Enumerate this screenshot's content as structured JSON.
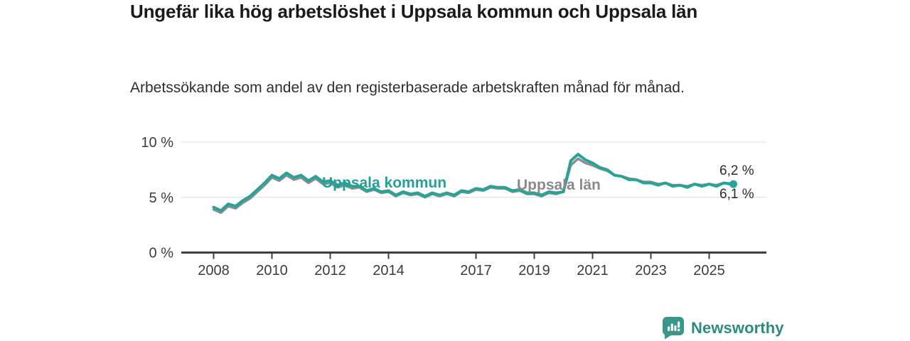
{
  "header": {
    "title": "Ungefär lika hög arbetslöshet i Uppsala kommun och Uppsala län",
    "subtitle": "Arbetssökande som andel av den registerbaserade arbetskraften månad för månad."
  },
  "chart_data": {
    "type": "line",
    "title": "Ungefär lika hög arbetslöshet i Uppsala kommun och Uppsala län",
    "subtitle": "Arbetssökande som andel av den registerbaserade arbetskraften månad för månad.",
    "xlabel": "",
    "ylabel": "",
    "ylim": [
      0,
      10
    ],
    "xlim": [
      2006.9,
      2027.0
    ],
    "grid": "horizontal",
    "legend_position": "inline-labels-on-line",
    "x_ticks": {
      "values": [
        2008,
        2010,
        2012,
        2014,
        2017,
        2019,
        2021,
        2023,
        2025
      ],
      "labels": [
        "2008",
        "2010",
        "2012",
        "2014",
        "2017",
        "2019",
        "2021",
        "2023",
        "2025"
      ]
    },
    "y_ticks": {
      "values": [
        0,
        5,
        10
      ],
      "labels": [
        "0 %",
        "5 %",
        "10 %"
      ]
    },
    "series": [
      {
        "name": "Uppsala län",
        "color": "#8d8d8d",
        "width": 3.5,
        "end_dot": false,
        "end_value_label": "6,1 %",
        "points": [
          [
            2008.0,
            3.9
          ],
          [
            2008.25,
            3.6
          ],
          [
            2008.5,
            4.2
          ],
          [
            2008.75,
            4.0
          ],
          [
            2009.0,
            4.5
          ],
          [
            2009.25,
            4.9
          ],
          [
            2009.5,
            5.5
          ],
          [
            2009.75,
            6.1
          ],
          [
            2010.0,
            6.8
          ],
          [
            2010.25,
            6.5
          ],
          [
            2010.5,
            7.0
          ],
          [
            2010.75,
            6.6
          ],
          [
            2011.0,
            6.8
          ],
          [
            2011.25,
            6.3
          ],
          [
            2011.5,
            6.7
          ],
          [
            2011.75,
            6.2
          ],
          [
            2012.0,
            6.3
          ],
          [
            2012.25,
            5.9
          ],
          [
            2012.5,
            6.1
          ],
          [
            2012.75,
            5.8
          ],
          [
            2013.0,
            5.9
          ],
          [
            2013.25,
            5.5
          ],
          [
            2013.5,
            5.7
          ],
          [
            2013.75,
            5.4
          ],
          [
            2014.0,
            5.5
          ],
          [
            2014.25,
            5.1
          ],
          [
            2014.5,
            5.4
          ],
          [
            2014.75,
            5.2
          ],
          [
            2015.0,
            5.3
          ],
          [
            2015.25,
            5.0
          ],
          [
            2015.5,
            5.3
          ],
          [
            2015.75,
            5.1
          ],
          [
            2016.0,
            5.3
          ],
          [
            2016.25,
            5.1
          ],
          [
            2016.5,
            5.5
          ],
          [
            2016.75,
            5.4
          ],
          [
            2017.0,
            5.7
          ],
          [
            2017.25,
            5.6
          ],
          [
            2017.5,
            5.9
          ],
          [
            2017.75,
            5.8
          ],
          [
            2018.0,
            5.8
          ],
          [
            2018.25,
            5.5
          ],
          [
            2018.5,
            5.6
          ],
          [
            2018.75,
            5.3
          ],
          [
            2019.0,
            5.3
          ],
          [
            2019.25,
            5.1
          ],
          [
            2019.5,
            5.4
          ],
          [
            2019.75,
            5.3
          ],
          [
            2020.0,
            5.5
          ],
          [
            2020.25,
            7.9
          ],
          [
            2020.5,
            8.5
          ],
          [
            2020.75,
            8.1
          ],
          [
            2021.0,
            7.9
          ],
          [
            2021.25,
            7.6
          ],
          [
            2021.5,
            7.4
          ],
          [
            2021.75,
            7.0
          ],
          [
            2022.0,
            6.9
          ],
          [
            2022.25,
            6.7
          ],
          [
            2022.5,
            6.6
          ],
          [
            2022.75,
            6.4
          ],
          [
            2023.0,
            6.4
          ],
          [
            2023.25,
            6.2
          ],
          [
            2023.5,
            6.3
          ],
          [
            2023.75,
            6.1
          ],
          [
            2024.0,
            6.1
          ],
          [
            2024.25,
            6.0
          ],
          [
            2024.5,
            6.2
          ],
          [
            2024.75,
            6.1
          ],
          [
            2025.0,
            6.2
          ],
          [
            2025.25,
            6.1
          ],
          [
            2025.5,
            6.3
          ],
          [
            2025.83,
            6.1
          ]
        ]
      },
      {
        "name": "Uppsala kommun",
        "color": "#29a398",
        "width": 4,
        "end_dot": true,
        "end_value_label": "6,2 %",
        "points": [
          [
            2008.0,
            4.1
          ],
          [
            2008.25,
            3.8
          ],
          [
            2008.5,
            4.4
          ],
          [
            2008.75,
            4.2
          ],
          [
            2009.0,
            4.7
          ],
          [
            2009.25,
            5.1
          ],
          [
            2009.5,
            5.7
          ],
          [
            2009.75,
            6.3
          ],
          [
            2010.0,
            7.0
          ],
          [
            2010.25,
            6.7
          ],
          [
            2010.5,
            7.2
          ],
          [
            2010.75,
            6.8
          ],
          [
            2011.0,
            7.0
          ],
          [
            2011.25,
            6.5
          ],
          [
            2011.5,
            6.9
          ],
          [
            2011.75,
            6.4
          ],
          [
            2012.0,
            6.5
          ],
          [
            2012.25,
            6.1
          ],
          [
            2012.5,
            6.3
          ],
          [
            2012.75,
            6.0
          ],
          [
            2013.0,
            6.0
          ],
          [
            2013.25,
            5.6
          ],
          [
            2013.5,
            5.8
          ],
          [
            2013.75,
            5.5
          ],
          [
            2014.0,
            5.6
          ],
          [
            2014.25,
            5.2
          ],
          [
            2014.5,
            5.5
          ],
          [
            2014.75,
            5.3
          ],
          [
            2015.0,
            5.4
          ],
          [
            2015.25,
            5.1
          ],
          [
            2015.5,
            5.4
          ],
          [
            2015.75,
            5.2
          ],
          [
            2016.0,
            5.4
          ],
          [
            2016.25,
            5.2
          ],
          [
            2016.5,
            5.6
          ],
          [
            2016.75,
            5.5
          ],
          [
            2017.0,
            5.8
          ],
          [
            2017.25,
            5.7
          ],
          [
            2017.5,
            6.0
          ],
          [
            2017.75,
            5.9
          ],
          [
            2018.0,
            5.9
          ],
          [
            2018.25,
            5.6
          ],
          [
            2018.5,
            5.7
          ],
          [
            2018.75,
            5.4
          ],
          [
            2019.0,
            5.4
          ],
          [
            2019.25,
            5.2
          ],
          [
            2019.5,
            5.5
          ],
          [
            2019.75,
            5.4
          ],
          [
            2020.0,
            5.5
          ],
          [
            2020.25,
            8.3
          ],
          [
            2020.5,
            8.9
          ],
          [
            2020.75,
            8.4
          ],
          [
            2021.0,
            8.1
          ],
          [
            2021.25,
            7.7
          ],
          [
            2021.5,
            7.5
          ],
          [
            2021.75,
            7.0
          ],
          [
            2022.0,
            6.9
          ],
          [
            2022.25,
            6.6
          ],
          [
            2022.5,
            6.6
          ],
          [
            2022.75,
            6.3
          ],
          [
            2023.0,
            6.3
          ],
          [
            2023.25,
            6.1
          ],
          [
            2023.5,
            6.3
          ],
          [
            2023.75,
            6.0
          ],
          [
            2024.0,
            6.1
          ],
          [
            2024.25,
            5.9
          ],
          [
            2024.5,
            6.2
          ],
          [
            2024.75,
            6.0
          ],
          [
            2025.0,
            6.2
          ],
          [
            2025.25,
            6.0
          ],
          [
            2025.5,
            6.3
          ],
          [
            2025.83,
            6.2
          ]
        ]
      }
    ],
    "annotations": {
      "kommun_label": "Uppsala kommun",
      "lan_label": "Uppsala län",
      "end_value_top": "6,2 %",
      "end_value_bottom": "6,1 %"
    }
  },
  "colors": {
    "kommun_line": "#29a398",
    "lan_line": "#8d8d8d",
    "axis": "#3f3f3f",
    "gridline": "#dcdcdc",
    "axis_text": "#3c3c3c",
    "brand_teal": "#2e8b82"
  },
  "footer": {
    "brand": "Newsworthy",
    "logo_icon": "newsworthy-bar-chart-speech-bubble-icon"
  }
}
